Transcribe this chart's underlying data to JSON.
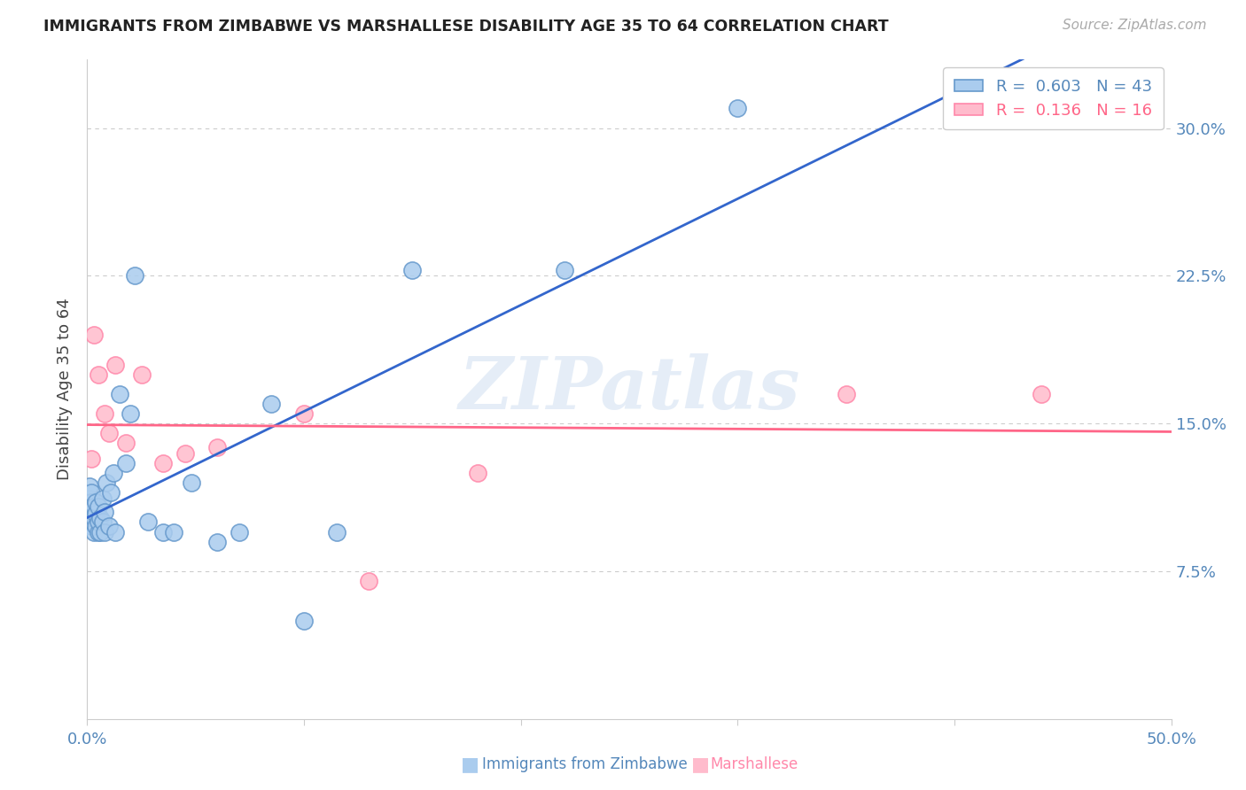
{
  "title": "IMMIGRANTS FROM ZIMBABWE VS MARSHALLESE DISABILITY AGE 35 TO 64 CORRELATION CHART",
  "source": "Source: ZipAtlas.com",
  "ylabel": "Disability Age 35 to 64",
  "watermark": "ZIPatlas",
  "legend1_label": "R =  0.603   N = 43",
  "legend2_label": "R =  0.136   N = 16",
  "scatter_blue_face": "#AACCEE",
  "scatter_blue_edge": "#6699CC",
  "scatter_pink_face": "#FFBBCC",
  "scatter_pink_edge": "#FF88AA",
  "line_blue": "#3366CC",
  "line_pink": "#FF6688",
  "text_blue": "#5588BB",
  "text_pink": "#FF88AA",
  "grid_color": "#CCCCCC",
  "xlim": [
    0.0,
    0.5
  ],
  "ylim": [
    0.0,
    0.335
  ],
  "ytick_vals": [
    0.075,
    0.15,
    0.225,
    0.3
  ],
  "ytick_labels": [
    "7.5%",
    "15.0%",
    "22.5%",
    "30.0%"
  ],
  "xtick_vals": [
    0.0,
    0.1,
    0.2,
    0.3,
    0.4,
    0.5
  ],
  "xtick_labels": [
    "0.0%",
    "",
    "",
    "",
    "",
    "50.0%"
  ],
  "zim_x": [
    0.001,
    0.001,
    0.001,
    0.002,
    0.002,
    0.002,
    0.002,
    0.003,
    0.003,
    0.003,
    0.004,
    0.004,
    0.004,
    0.005,
    0.005,
    0.005,
    0.006,
    0.006,
    0.007,
    0.007,
    0.008,
    0.008,
    0.009,
    0.01,
    0.011,
    0.012,
    0.013,
    0.015,
    0.018,
    0.02,
    0.022,
    0.028,
    0.035,
    0.04,
    0.048,
    0.06,
    0.07,
    0.085,
    0.1,
    0.115,
    0.15,
    0.22,
    0.3
  ],
  "zim_y": [
    0.108,
    0.112,
    0.118,
    0.098,
    0.105,
    0.11,
    0.115,
    0.095,
    0.102,
    0.108,
    0.098,
    0.104,
    0.11,
    0.095,
    0.1,
    0.108,
    0.095,
    0.102,
    0.1,
    0.112,
    0.095,
    0.105,
    0.12,
    0.098,
    0.115,
    0.125,
    0.095,
    0.165,
    0.13,
    0.155,
    0.225,
    0.1,
    0.095,
    0.095,
    0.12,
    0.09,
    0.095,
    0.16,
    0.05,
    0.095,
    0.228,
    0.228,
    0.31
  ],
  "mar_x": [
    0.002,
    0.003,
    0.005,
    0.008,
    0.01,
    0.013,
    0.018,
    0.025,
    0.035,
    0.045,
    0.06,
    0.1,
    0.13,
    0.18,
    0.35,
    0.44
  ],
  "mar_y": [
    0.132,
    0.195,
    0.175,
    0.155,
    0.145,
    0.18,
    0.14,
    0.175,
    0.13,
    0.135,
    0.138,
    0.155,
    0.07,
    0.125,
    0.165,
    0.165
  ]
}
